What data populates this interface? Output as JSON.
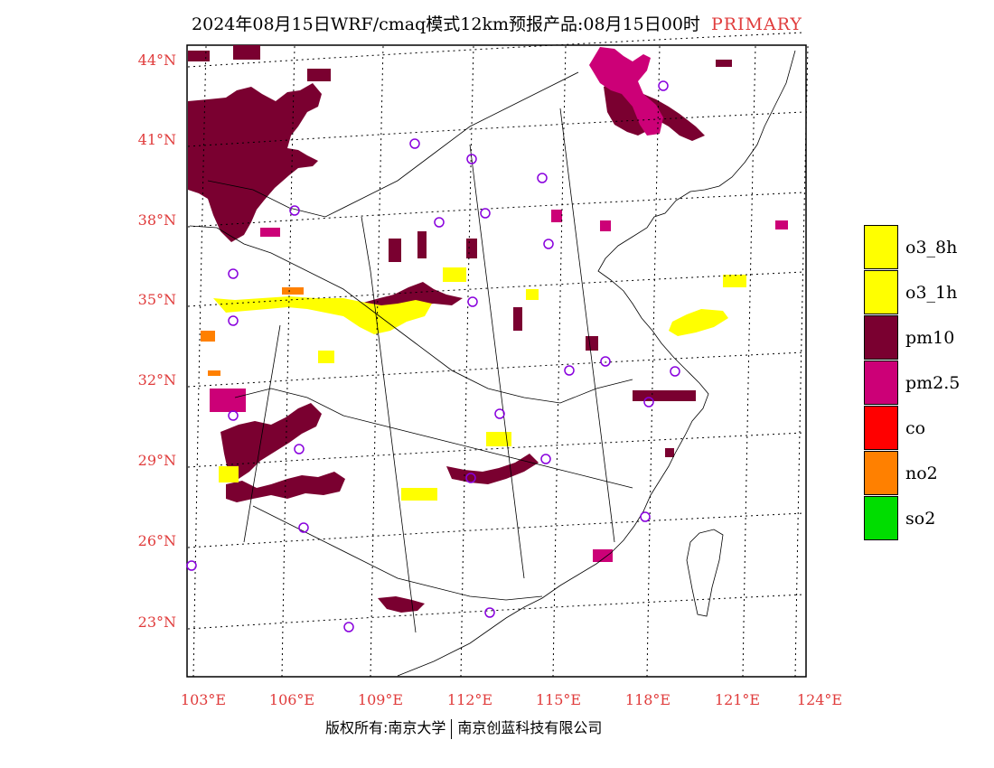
{
  "title": {
    "main": "2024年08月15日WRF/cmaq模式12km预报产品:08月15日00时",
    "tag": "PRIMARY"
  },
  "axes": {
    "lat_labels": [
      "44°N",
      "41°N",
      "38°N",
      "35°N",
      "32°N",
      "29°N",
      "26°N",
      "23°N"
    ],
    "lon_labels": [
      "103°E",
      "106°E",
      "109°E",
      "112°E",
      "115°E",
      "118°E",
      "121°E",
      "124°E"
    ],
    "label_color": "#e03c3c"
  },
  "legend": [
    {
      "label": "o3_8h",
      "color": "#ffff00"
    },
    {
      "label": "o3_1h",
      "color": "#ffff00"
    },
    {
      "label": "pm10",
      "color": "#7a0030"
    },
    {
      "label": "pm2.5",
      "color": "#cc0077"
    },
    {
      "label": "co",
      "color": "#ff0000"
    },
    {
      "label": "no2",
      "color": "#ff8000"
    },
    {
      "label": "so2",
      "color": "#00dd00"
    }
  ],
  "station_marker_color": "#8800dd",
  "credit": {
    "left": "版权所有:南京大学",
    "right": "南京创蓝科技有限公司"
  }
}
